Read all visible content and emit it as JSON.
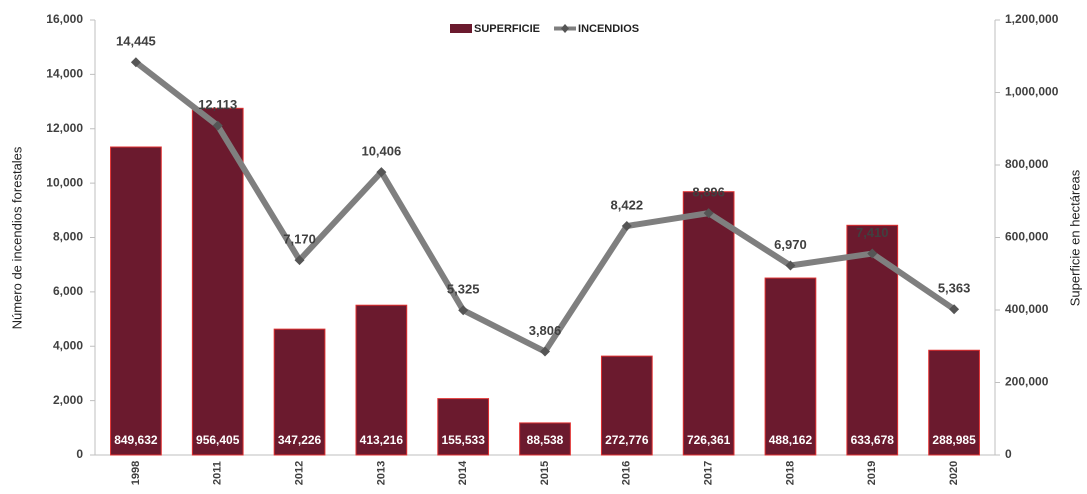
{
  "chart_data": {
    "type": "bar",
    "categories": [
      "1998",
      "2011",
      "2012",
      "2013",
      "2014",
      "2015",
      "2016",
      "2017",
      "2018",
      "2019",
      "2020"
    ],
    "series": [
      {
        "name": "SUPERFICIE",
        "type": "bar",
        "axis": "y2",
        "color": "#6b1a2e",
        "values": [
          849632,
          956405,
          347226,
          413216,
          155533,
          88538,
          272776,
          726361,
          488162,
          633678,
          288985
        ],
        "value_labels": [
          "849,632",
          "956,405",
          "347,226",
          "413,216",
          "155,533",
          "88,538",
          "272,776",
          "726,361",
          "488,162",
          "633,678",
          "288,985"
        ]
      },
      {
        "name": "INCENDIOS",
        "type": "line",
        "axis": "y",
        "color": "#7f7f7f",
        "values": [
          14445,
          12113,
          7170,
          10406,
          5325,
          3806,
          8422,
          8896,
          6970,
          7410,
          5363
        ],
        "value_labels": [
          "14,445",
          "12,113",
          "7,170",
          "10,406",
          "5,325",
          "3,806",
          "8,422",
          "8,896",
          "6,970",
          "7,410",
          "5,363"
        ]
      }
    ],
    "ylabel": "Número de incendios forestales",
    "y2label": "Superficie en hectáreas",
    "ylim": [
      0,
      16000
    ],
    "yticks": [
      0,
      {
        "value": 2000,
        "label": "2,000"
      },
      {
        "value": 4000,
        "label": "4,000"
      },
      {
        "value": 6000,
        "label": "6,000"
      },
      {
        "value": 8000,
        "label": "8,000"
      },
      {
        "value": 10000,
        "label": "10,000"
      },
      {
        "value": 12000,
        "label": "12,000"
      },
      {
        "value": 14000,
        "label": "14,000"
      },
      {
        "value": 16000,
        "label": "16,000"
      }
    ],
    "y2lim": [
      0,
      1200000
    ],
    "y2ticks": [
      0,
      {
        "value": 200000,
        "label": "200,000"
      },
      {
        "value": 400000,
        "label": "400,000"
      },
      {
        "value": 600000,
        "label": "600,000"
      },
      {
        "value": 800000,
        "label": "800,000"
      },
      {
        "value": 1000000,
        "label": "1,000,000"
      },
      {
        "value": 1200000,
        "label": "1,200,000"
      }
    ],
    "legend": "top"
  }
}
